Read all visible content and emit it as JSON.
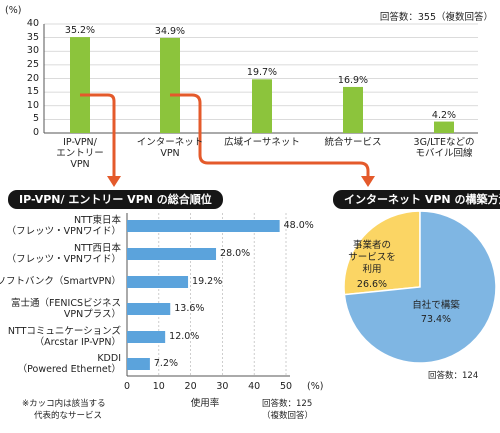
{
  "chart_data": [
    {
      "type": "bar",
      "unit_label": "(%)",
      "categories": [
        "IP-VPN/\nエントリー\nVPN",
        "インターネット\nVPN",
        "広域イーサネット",
        "統合サービス",
        "3G/LTEなどの\nモバイル回線"
      ],
      "values": [
        35.2,
        34.9,
        19.7,
        16.9,
        4.2
      ],
      "value_labels": [
        "35.2%",
        "34.9%",
        "19.7%",
        "16.9%",
        "4.2%"
      ],
      "ylim": [
        0,
        40
      ],
      "yticks": [
        "0",
        "5",
        "10",
        "15",
        "20",
        "25",
        "30",
        "35",
        "40"
      ],
      "grid": true,
      "note": "回答数：355（複数回答）"
    },
    {
      "type": "bar",
      "orientation": "horizontal",
      "title": "IP-VPN/ エントリー VPN の総合順位",
      "categories": [
        "NTT東日本\n（フレッツ・VPNワイド）",
        "NTT西日本\n（フレッツ・VPNワイド）",
        "ソフトバンク（SmartVPN）",
        "富士通（FENICSビジネス\nVPNプラス）",
        "NTTコミュニケーションズ\n（Arcstar IP-VPN）",
        "KDDI\n（Powered Ethernet）"
      ],
      "values": [
        48.0,
        28.0,
        19.2,
        13.6,
        12.0,
        7.2
      ],
      "value_labels": [
        "48.0%",
        "28.0%",
        "19.2%",
        "13.6%",
        "12.0%",
        "7.2%"
      ],
      "xlim": [
        0,
        50
      ],
      "xticks": [
        "0",
        "10",
        "20",
        "30",
        "40",
        "50"
      ],
      "xticks_unit": "(%)",
      "xlabel": "使用率",
      "footnote": [
        "※カッコ内は該当する",
        "代表的なサービス"
      ],
      "note": [
        "回答数：125",
        "（複数回答）"
      ]
    },
    {
      "type": "pie",
      "title": "インターネット VPN の構築方法",
      "slices": [
        {
          "label": "自社で構築",
          "value": 73.4,
          "value_label": "73.4%"
        },
        {
          "label": "事業者の\nサービスを\n利用",
          "value": 26.6,
          "value_label": "26.6%"
        }
      ],
      "note": "回答数：124"
    }
  ],
  "colors": {
    "bar_green": "#8cc43c",
    "bar_blue": "#5ba3dc",
    "pie_blue": "#7fb6e3",
    "pie_yellow": "#fbd564",
    "arrow_orange": "#e45a2b",
    "header_bg": "#161616"
  }
}
